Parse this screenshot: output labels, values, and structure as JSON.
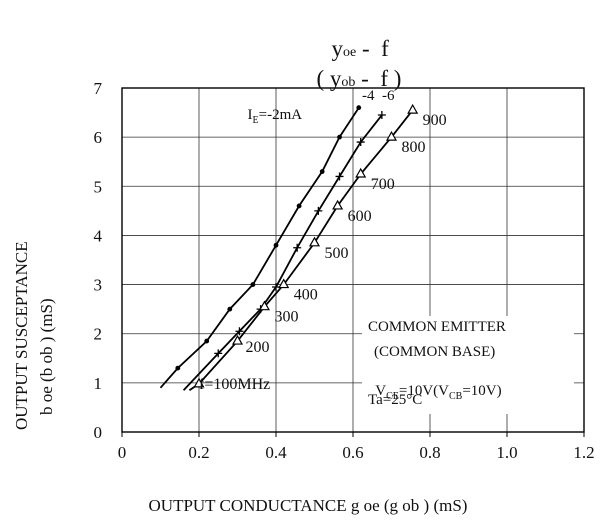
{
  "title_line1_a": "y",
  "title_line1_b": "oe",
  "title_line1_c": " -  f",
  "title_line2_a": "( y",
  "title_line2_b": "ob",
  "title_line2_c": " -  f )",
  "annotations": {
    "box_line1": "COMMON EMITTER",
    "box_line2": "(COMMON BASE)",
    "vce": "V",
    "vce_sub1": "CE",
    "vce_mid": "=10V(V",
    "vce_sub2": "CB",
    "vce_end": "=10V)",
    "ta": "Ta=25°C",
    "ie_a": "I",
    "ie_sub": "E",
    "ie_b": "=-2mA",
    "curve_labels": "-4  -6"
  },
  "chart_data": {
    "type": "line",
    "xlabel": "OUTPUT CONDUCTANCE g oe (g ob ) (mS)",
    "ylabel_line1": "OUTPUT SUSCEPTANCE",
    "ylabel_line2": "b oe (b ob ) (mS)",
    "xlim": [
      0,
      1.2
    ],
    "ylim": [
      0,
      7
    ],
    "x_ticks": [
      "0",
      "0.2",
      "0.4",
      "0.6",
      "0.8",
      "1.0",
      "1.2"
    ],
    "y_ticks": [
      "0",
      "1",
      "2",
      "3",
      "4",
      "5",
      "6",
      "7"
    ],
    "grid": true,
    "series": [
      {
        "name": "IE=-2mA",
        "marker": "dot",
        "x": [
          0.1,
          0.145,
          0.22,
          0.28,
          0.34,
          0.4,
          0.46,
          0.52,
          0.565,
          0.615
        ],
        "y": [
          0.9,
          1.3,
          1.85,
          2.5,
          3.0,
          3.8,
          4.6,
          5.3,
          6.0,
          6.6
        ]
      },
      {
        "name": "-4",
        "marker": "plus",
        "x": [
          0.16,
          0.25,
          0.305,
          0.36,
          0.4,
          0.455,
          0.51,
          0.565,
          0.62,
          0.675
        ],
        "y": [
          0.85,
          1.6,
          2.05,
          2.5,
          2.95,
          3.75,
          4.5,
          5.2,
          5.9,
          6.45
        ]
      },
      {
        "name": "-6",
        "marker": "triangle",
        "x": [
          0.175,
          0.2,
          0.3,
          0.37,
          0.42,
          0.5,
          0.56,
          0.62,
          0.7,
          0.755
        ],
        "y": [
          0.85,
          0.98,
          1.85,
          2.55,
          3.0,
          3.85,
          4.6,
          5.25,
          6.0,
          6.55
        ]
      }
    ],
    "freq_labels": [
      "f=100MHz",
      "200",
      "300",
      "400",
      "500",
      "600",
      "700",
      "800",
      "900"
    ]
  }
}
